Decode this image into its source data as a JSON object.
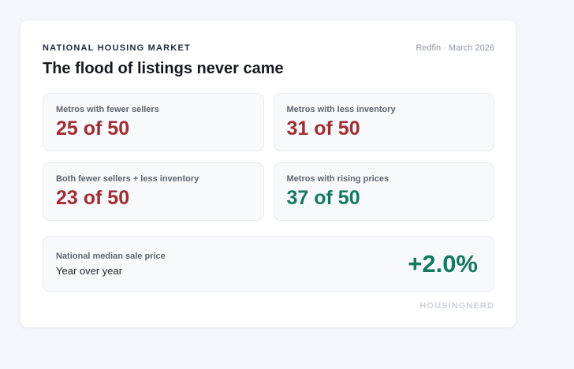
{
  "card": {
    "eyebrow": "NATIONAL HOUSING MARKET",
    "source": "Redfin · March 2026",
    "title": "The flood of listings never came",
    "stats": [
      {
        "label": "Metros with fewer sellers",
        "value": "25 of 50",
        "value_color": "#a02d33"
      },
      {
        "label": "Metros with less inventory",
        "value": "31 of 50",
        "value_color": "#a02d33"
      },
      {
        "label": "Both fewer sellers + less inventory",
        "value": "23 of 50",
        "value_color": "#a02d33"
      },
      {
        "label": "Metros with rising prices",
        "value": "37 of 50",
        "value_color": "#13795f"
      }
    ],
    "highlight": {
      "label": "National median sale price",
      "sublabel": "Year over year",
      "value": "+2.0%",
      "value_color": "#13795f"
    },
    "footer": "HOUSINGNERD"
  },
  "colors": {
    "negative": "#a02d33",
    "positive": "#13795f",
    "page_background": "#f4f6f9",
    "tile_background": "#f8f9fb"
  }
}
